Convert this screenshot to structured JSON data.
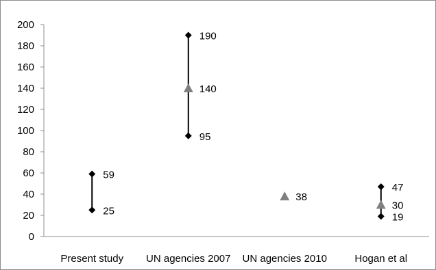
{
  "chart_data": {
    "type": "scatter",
    "categories": [
      "Present study",
      "UN agencies 2007",
      "UN agencies 2010",
      "Hogan et al"
    ],
    "ylim": [
      0,
      200
    ],
    "yticks": [
      0,
      20,
      40,
      60,
      80,
      100,
      120,
      140,
      160,
      180,
      200
    ],
    "grid": false,
    "legend": "none",
    "series": [
      {
        "marker": "diamond",
        "color": "#000000",
        "points": [
          {
            "category": "Present study",
            "low": 25,
            "high": 59
          },
          {
            "category": "UN agencies 2007",
            "low": 95,
            "high": 190
          },
          {
            "category": "Hogan et al",
            "low": 19,
            "high": 47
          }
        ]
      },
      {
        "marker": "triangle",
        "color": "#808080",
        "points": [
          {
            "category": "UN agencies 2007",
            "value": 140
          },
          {
            "category": "UN agencies 2010",
            "value": 38
          },
          {
            "category": "Hogan et al",
            "value": 30
          }
        ]
      }
    ]
  }
}
